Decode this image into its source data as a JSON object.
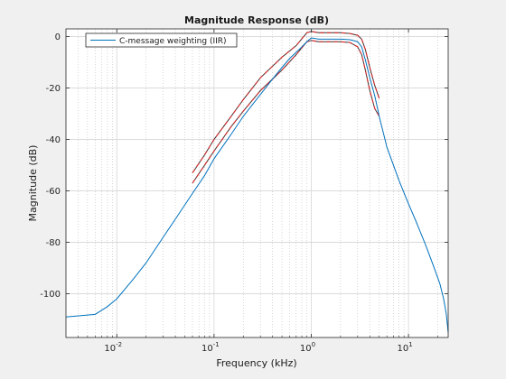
{
  "chart_data": {
    "type": "line",
    "title": "Magnitude Response (dB)",
    "xlabel": "Frequency (kHz)",
    "ylabel": "Magnitude (dB)",
    "xscale": "log",
    "xlim": [
      0.003,
      25.6
    ],
    "ylim": [
      -117,
      3
    ],
    "grid": "on",
    "minor_grid_x": "on",
    "legend_position": "top-left",
    "colors": {
      "axes_background": "#ffffff",
      "figure_background": "#f0f0f0",
      "response_line": "#0072bd",
      "mask_outer": "#d62a2a",
      "mask_inner": "#333333"
    },
    "xticks": [
      {
        "value": 0.01,
        "base": "10",
        "exp": "-2"
      },
      {
        "value": 0.1,
        "base": "10",
        "exp": "-1"
      },
      {
        "value": 1,
        "base": "10",
        "exp": "0"
      },
      {
        "value": 10,
        "base": "10",
        "exp": "1"
      }
    ],
    "yticks": [
      0,
      -20,
      -40,
      -60,
      -80,
      -100
    ],
    "series": [
      {
        "name": "C-message weighting (IIR)",
        "style": "solid",
        "x": [
          0.003,
          0.006,
          0.008,
          0.01,
          0.015,
          0.02,
          0.03,
          0.04,
          0.06,
          0.08,
          0.1,
          0.15,
          0.2,
          0.3,
          0.4,
          0.5,
          0.6,
          0.8,
          0.9,
          1.0,
          1.2,
          1.5,
          2.0,
          2.5,
          3.0,
          3.3,
          3.6,
          4.0,
          4.5,
          5.0,
          6.0,
          8.0,
          10.0,
          12.0,
          15.0,
          18.0,
          21.0,
          23.0,
          24.5,
          25.6
        ],
        "y": [
          -109,
          -108,
          -105,
          -102,
          -94,
          -88,
          -78,
          -71,
          -61,
          -54,
          -47.5,
          -38,
          -31,
          -22.5,
          -16.5,
          -12,
          -8.5,
          -4,
          -2,
          -0.5,
          -1,
          -1,
          -1,
          -1.2,
          -2,
          -4,
          -9,
          -16,
          -23,
          -31,
          -43,
          -56,
          -65,
          -72,
          -81,
          -89,
          -96,
          -102,
          -108,
          -115
        ]
      }
    ],
    "mask_lines": [
      {
        "style": "dashed",
        "color": "#d62a2a",
        "x": [
          0.06,
          0.08,
          0.1,
          0.15,
          0.2,
          0.3,
          0.5,
          0.7,
          0.9,
          1.0,
          1.2,
          1.5,
          2.0,
          2.5,
          3.0,
          3.3,
          3.6,
          4.0,
          4.5,
          5.0
        ],
        "y": [
          -53,
          -46,
          -40,
          -31,
          -24.5,
          -16,
          -8,
          -3.5,
          1.5,
          2,
          1.5,
          1.5,
          1.5,
          1.2,
          0.5,
          -1,
          -5,
          -12,
          -19,
          -24
        ]
      },
      {
        "style": "dashed",
        "color": "#d62a2a",
        "x": [
          0.06,
          0.08,
          0.1,
          0.15,
          0.2,
          0.3,
          0.5,
          0.7,
          0.9,
          1.0,
          1.2,
          1.5,
          2.0,
          2.5,
          3.0,
          3.3,
          3.6,
          4.0,
          4.5,
          5.0
        ],
        "y": [
          -57,
          -50,
          -44.5,
          -35,
          -29,
          -21,
          -13,
          -7,
          -2,
          -1.5,
          -2,
          -2,
          -2,
          -2.3,
          -4,
          -7,
          -13,
          -21,
          -28,
          -31
        ]
      }
    ],
    "legend": [
      {
        "label": "C-message weighting (IIR)",
        "color": "#0072bd"
      }
    ]
  }
}
